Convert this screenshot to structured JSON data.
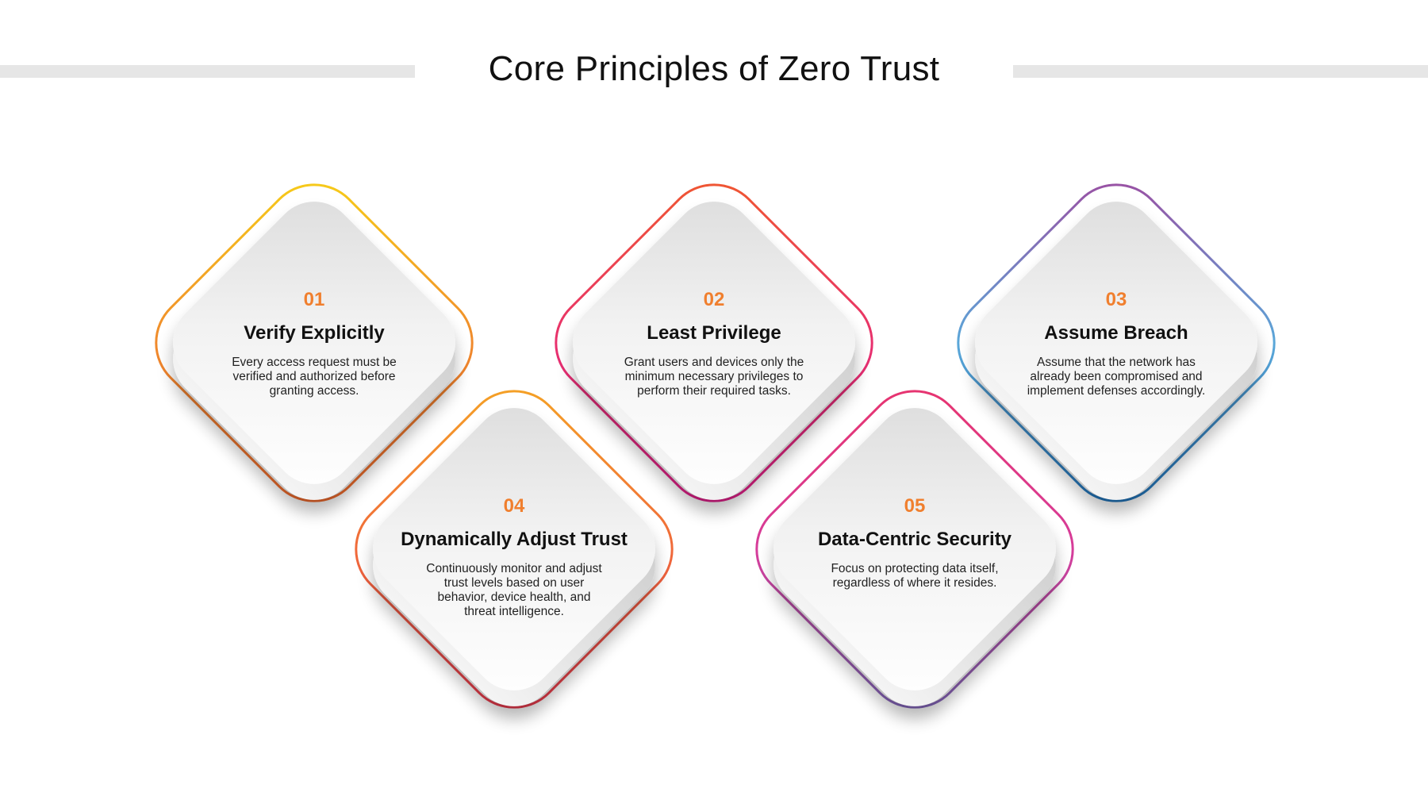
{
  "title": "Core Principles of Zero Trust",
  "principles": [
    {
      "number": "01",
      "title": "Verify Explicitly",
      "description": "Every access request must be verified and authorized before granting access.",
      "colors": [
        "#f7d117",
        "#f08a2c",
        "#f0652c"
      ]
    },
    {
      "number": "02",
      "title": "Least Privilege",
      "description": "Grant users and devices only the minimum necessary privileges to perform their required tasks.",
      "colors": [
        "#f05a2c",
        "#e8316d",
        "#e21d8f"
      ]
    },
    {
      "number": "03",
      "title": "Assume Breach",
      "description": "Assume that the network has already been compromised and implement defenses accordingly.",
      "colors": [
        "#a0489e",
        "#5aa7d9",
        "#1a6fb8"
      ]
    },
    {
      "number": "04",
      "title": "Dynamically Adjust Trust",
      "description": "Continuously monitor and adjust trust levels based on user behavior, device health, and threat intelligence.",
      "colors": [
        "#f5a623",
        "#f06a3a",
        "#e8334f"
      ]
    },
    {
      "number": "05",
      "title": "Data-Centric Security",
      "description": "Focus on protecting data itself, regardless of where it resides.",
      "colors": [
        "#e8336b",
        "#d63c9a",
        "#7a6cc0"
      ]
    }
  ]
}
